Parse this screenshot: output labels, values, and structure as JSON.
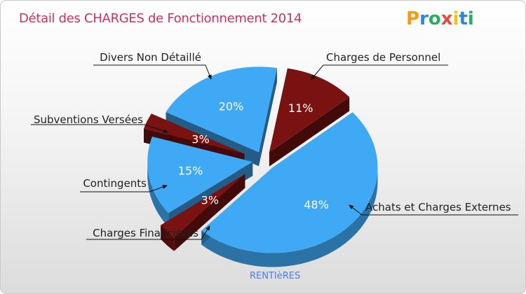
{
  "title": "Détail des CHARGES de Fonctionnement 2014",
  "logo_text": "Proxiti",
  "commune": "RENTIèRES",
  "colors": {
    "title": "#c8325e",
    "blue": "#3fa9f5",
    "blue_side": "#2b87d6",
    "red": "#7a1212",
    "red_side": "#4d0a0a"
  },
  "chart_data": {
    "type": "pie",
    "title": "Détail des CHARGES de Fonctionnement 2014",
    "slices": [
      {
        "label": "Charges de Personnel",
        "value": 11,
        "pct_label": "11%",
        "color": "#7a1212"
      },
      {
        "label": "Achats et Charges Externes",
        "value": 48,
        "pct_label": "48%",
        "color": "#3fa9f5"
      },
      {
        "label": "Charges Financières",
        "value": 3,
        "pct_label": "3%",
        "color": "#7a1212"
      },
      {
        "label": "Contingents",
        "value": 15,
        "pct_label": "15%",
        "color": "#3fa9f5"
      },
      {
        "label": "Subventions Versées",
        "value": 3,
        "pct_label": "3%",
        "color": "#7a1212"
      },
      {
        "label": "Divers Non Détaillé",
        "value": 20,
        "pct_label": "20%",
        "color": "#3fa9f5"
      }
    ]
  }
}
